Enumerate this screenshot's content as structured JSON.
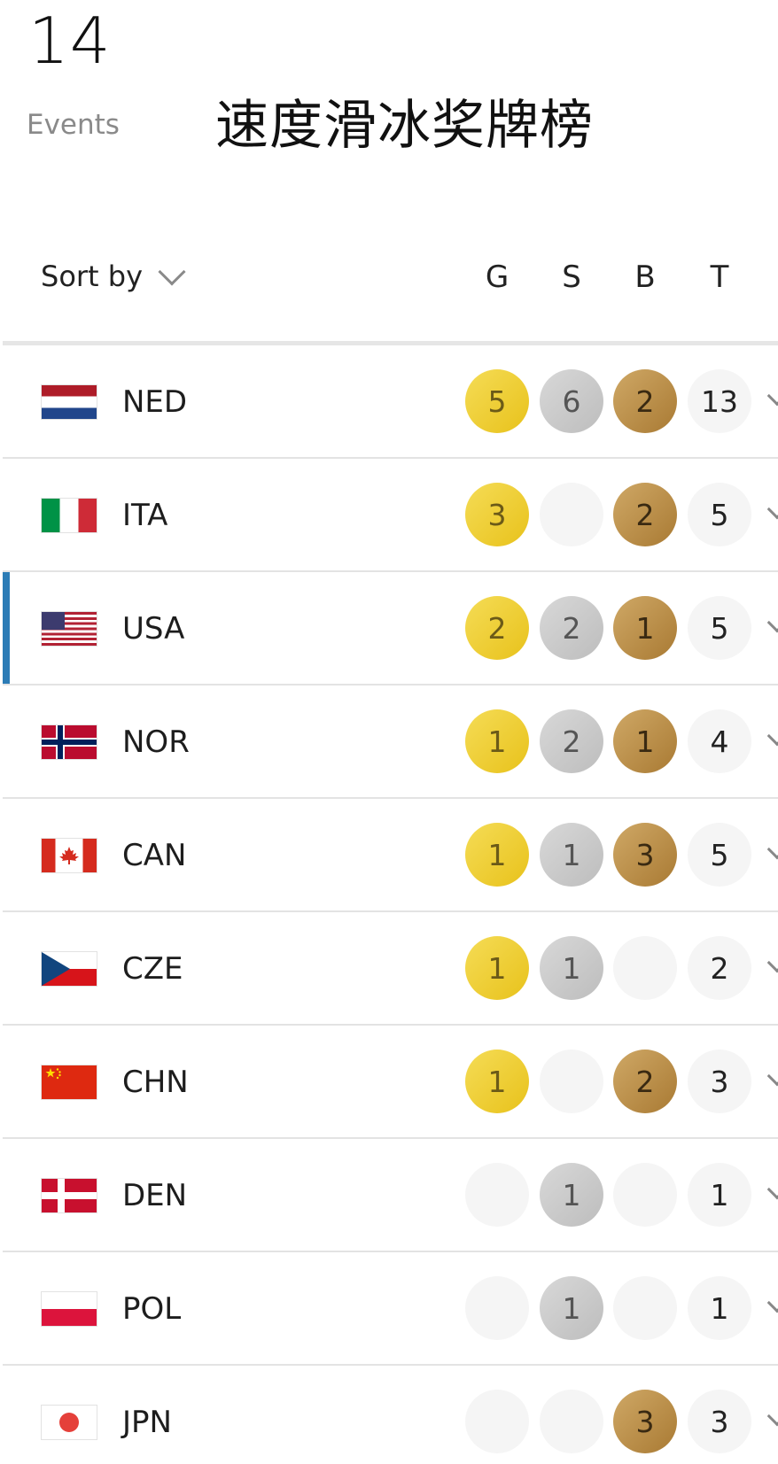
{
  "header": {
    "events_count": "14",
    "events_label": "Events",
    "title": "速度滑冰奖牌榜"
  },
  "sort": {
    "label": "Sort by"
  },
  "columns": {
    "gold": "G",
    "silver": "S",
    "bronze": "B",
    "total": "T"
  },
  "colors": {
    "gold": "#e8c21b",
    "silver": "#c6c6c6",
    "bronze": "#b88a45",
    "empty": "#f5f5f5",
    "highlight_bar": "#2c7cb6"
  },
  "rows": [
    {
      "country": "NED",
      "flag": "netherlands-flag",
      "gold": "5",
      "silver": "6",
      "bronze": "2",
      "total": "13",
      "highlighted": false
    },
    {
      "country": "ITA",
      "flag": "italy-flag",
      "gold": "3",
      "silver": "",
      "bronze": "2",
      "total": "5",
      "highlighted": false
    },
    {
      "country": "USA",
      "flag": "usa-flag",
      "gold": "2",
      "silver": "2",
      "bronze": "1",
      "total": "5",
      "highlighted": true
    },
    {
      "country": "NOR",
      "flag": "norway-flag",
      "gold": "1",
      "silver": "2",
      "bronze": "1",
      "total": "4",
      "highlighted": false
    },
    {
      "country": "CAN",
      "flag": "canada-flag",
      "gold": "1",
      "silver": "1",
      "bronze": "3",
      "total": "5",
      "highlighted": false
    },
    {
      "country": "CZE",
      "flag": "czechia-flag",
      "gold": "1",
      "silver": "1",
      "bronze": "",
      "total": "2",
      "highlighted": false
    },
    {
      "country": "CHN",
      "flag": "china-flag",
      "gold": "1",
      "silver": "",
      "bronze": "2",
      "total": "3",
      "highlighted": false
    },
    {
      "country": "DEN",
      "flag": "denmark-flag",
      "gold": "",
      "silver": "1",
      "bronze": "",
      "total": "1",
      "highlighted": false
    },
    {
      "country": "POL",
      "flag": "poland-flag",
      "gold": "",
      "silver": "1",
      "bronze": "",
      "total": "1",
      "highlighted": false
    },
    {
      "country": "JPN",
      "flag": "japan-flag",
      "gold": "",
      "silver": "",
      "bronze": "3",
      "total": "3",
      "highlighted": false
    }
  ]
}
